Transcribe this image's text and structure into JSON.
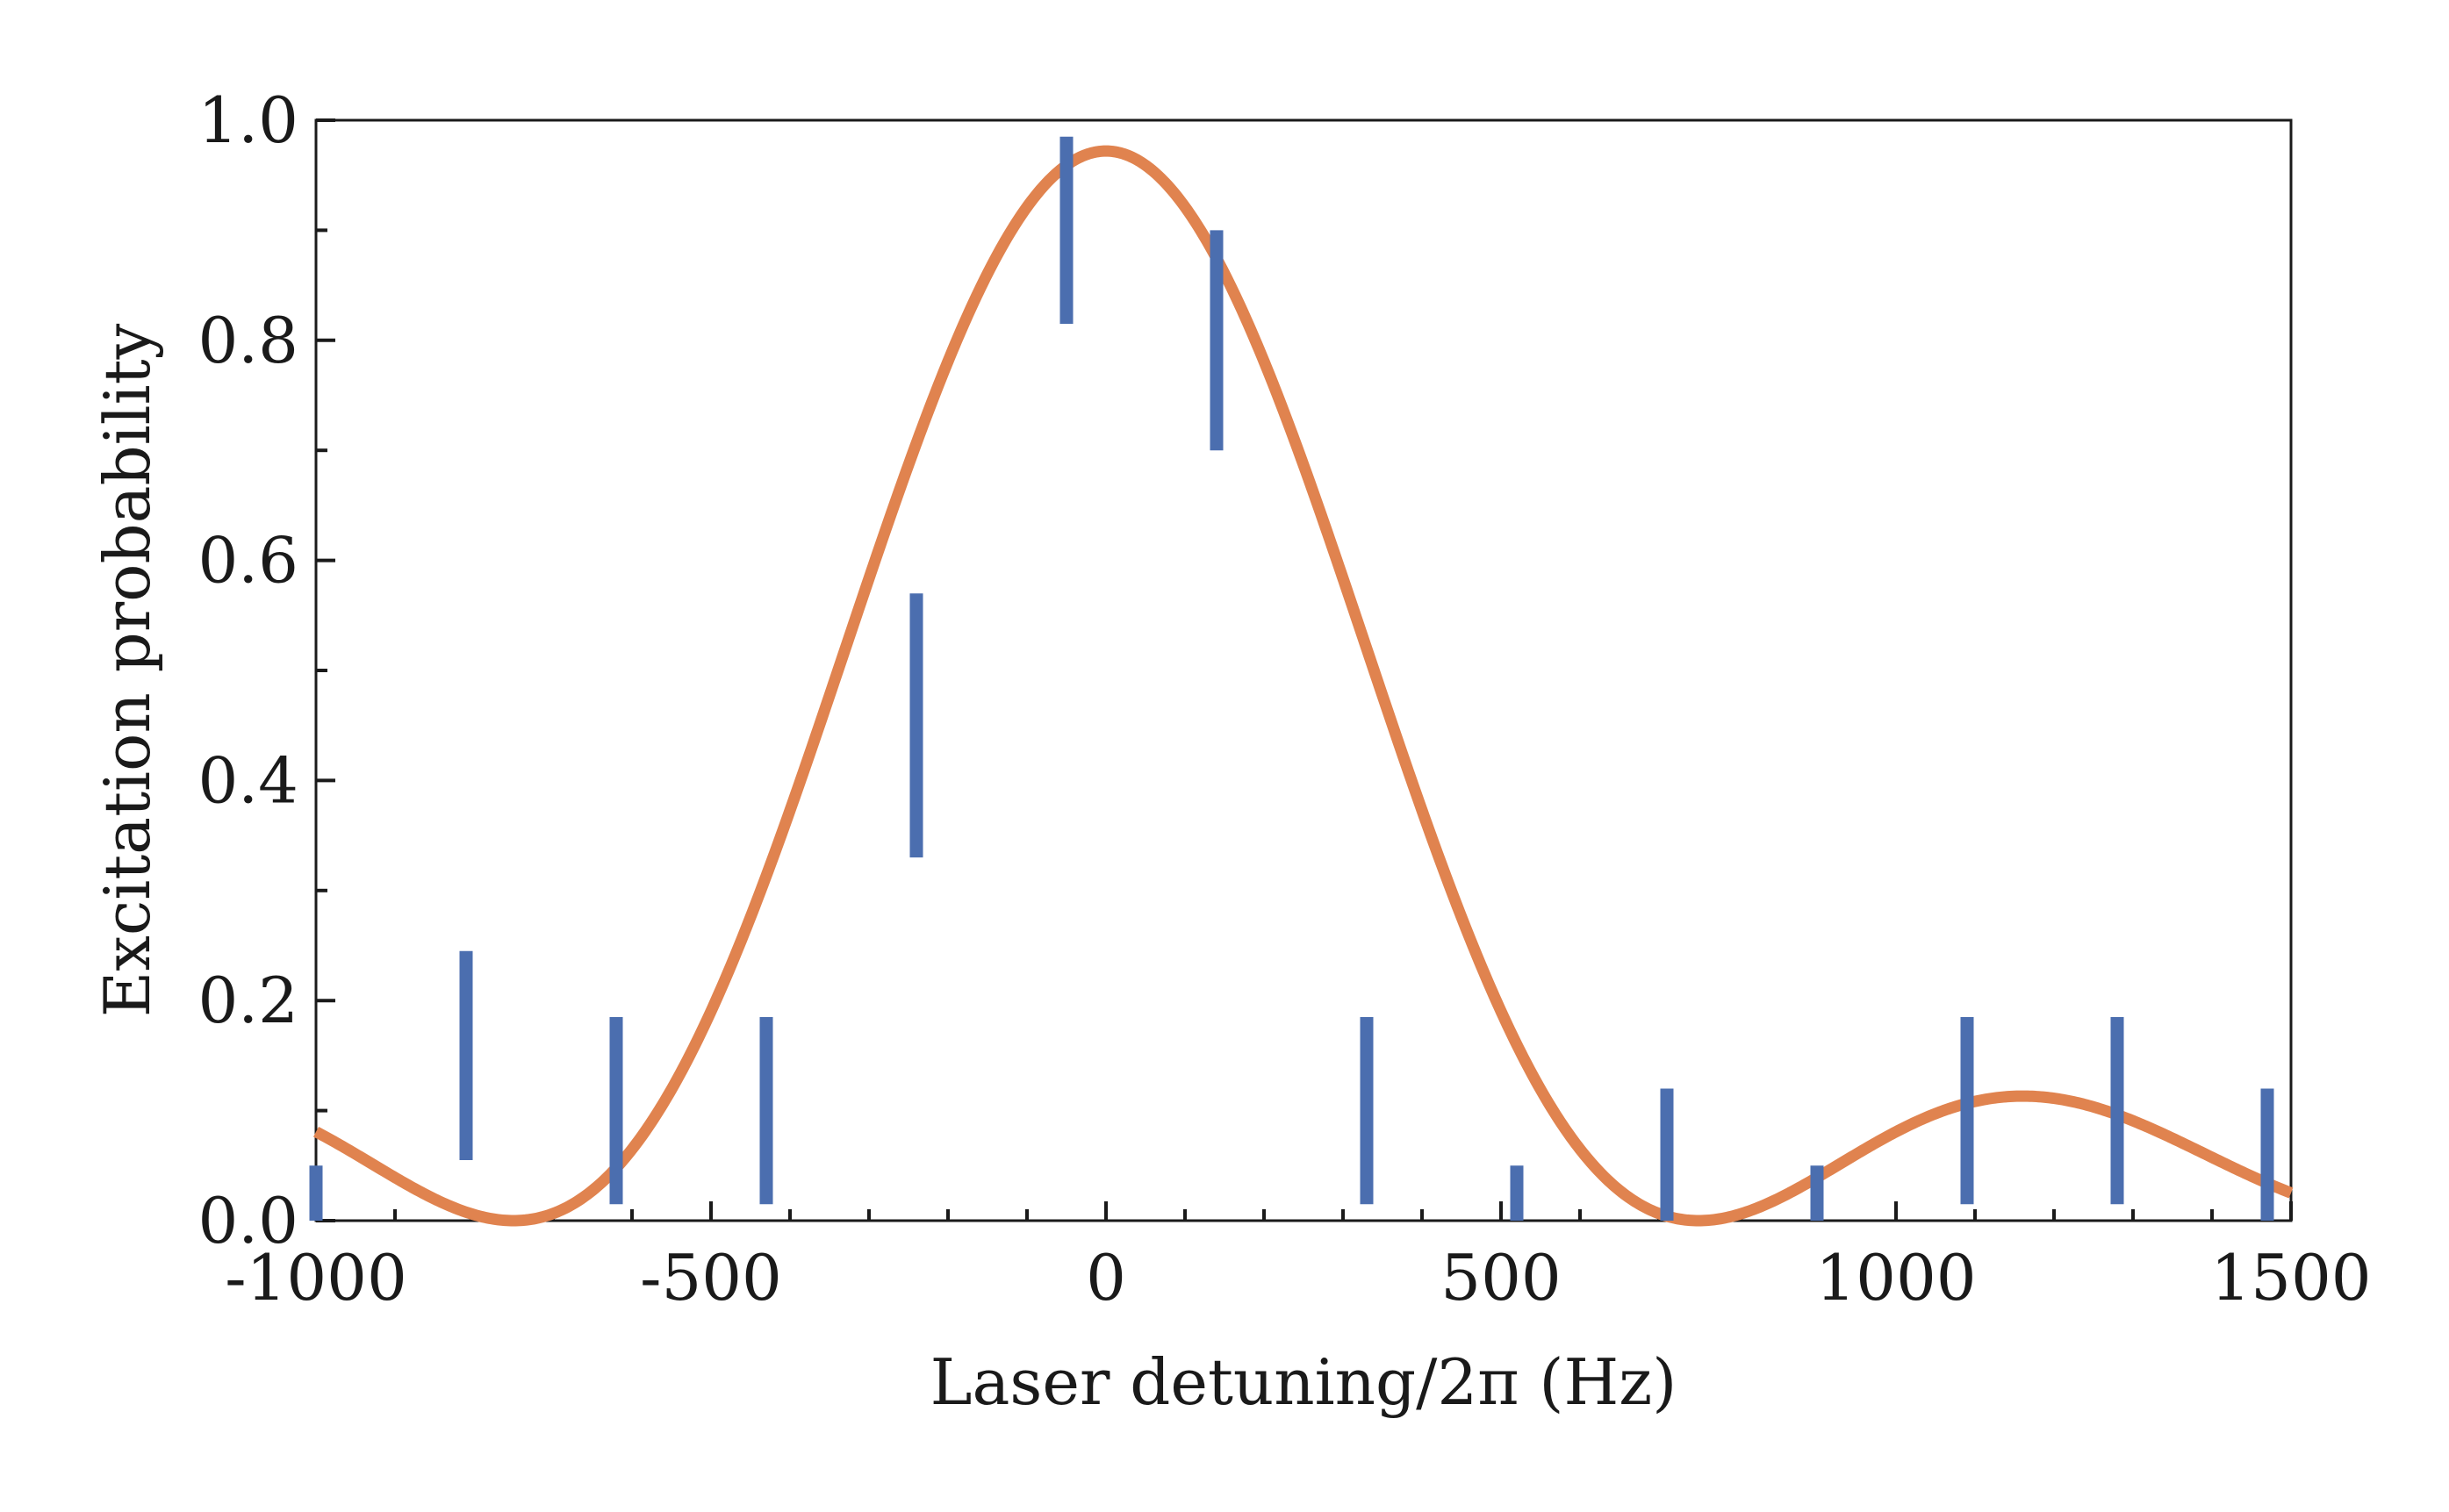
{
  "chart_data": {
    "type": "scatter",
    "title": "",
    "xlabel": "Laser detuning/2π (Hz)",
    "ylabel": "Excitation probability",
    "xlim": [
      -1000,
      1500
    ],
    "ylim": [
      0,
      1
    ],
    "xticks": [
      -1000,
      -500,
      0,
      500,
      1000,
      1500
    ],
    "xtick_labels": [
      "-1000",
      "-500",
      "0",
      "500",
      "1000",
      "1500"
    ],
    "yticks": [
      0,
      0.2,
      0.4,
      0.6,
      0.8,
      1.0
    ],
    "ytick_labels": [
      "0.0",
      "0.2",
      "0.4",
      "0.6",
      "0.8",
      "1.0"
    ],
    "grid": false,
    "legend": "none",
    "series": [
      {
        "kind": "errorbar",
        "color": "#4b6eaf",
        "points": [
          {
            "x": -1000,
            "low": 0.0,
            "high": 0.05
          },
          {
            "x": -810,
            "low": 0.055,
            "high": 0.245
          },
          {
            "x": -620,
            "low": 0.015,
            "high": 0.185
          },
          {
            "x": -430,
            "low": 0.015,
            "high": 0.185
          },
          {
            "x": -240,
            "low": 0.33,
            "high": 0.57
          },
          {
            "x": -50,
            "low": 0.815,
            "high": 0.985
          },
          {
            "x": 140,
            "low": 0.7,
            "high": 0.9
          },
          {
            "x": 330,
            "low": 0.015,
            "high": 0.185
          },
          {
            "x": 520,
            "low": 0.0,
            "high": 0.05
          },
          {
            "x": 710,
            "low": 0.0,
            "high": 0.12
          },
          {
            "x": 900,
            "low": 0.0,
            "high": 0.05
          },
          {
            "x": 1090,
            "low": 0.015,
            "high": 0.185
          },
          {
            "x": 1280,
            "low": 0.015,
            "high": 0.185
          },
          {
            "x": 1470,
            "low": 0.0,
            "high": 0.12
          }
        ]
      },
      {
        "kind": "line",
        "color": "#e0834f",
        "function": "rabi",
        "amplitude": 0.972,
        "center": 0,
        "omega": 433
      }
    ]
  }
}
